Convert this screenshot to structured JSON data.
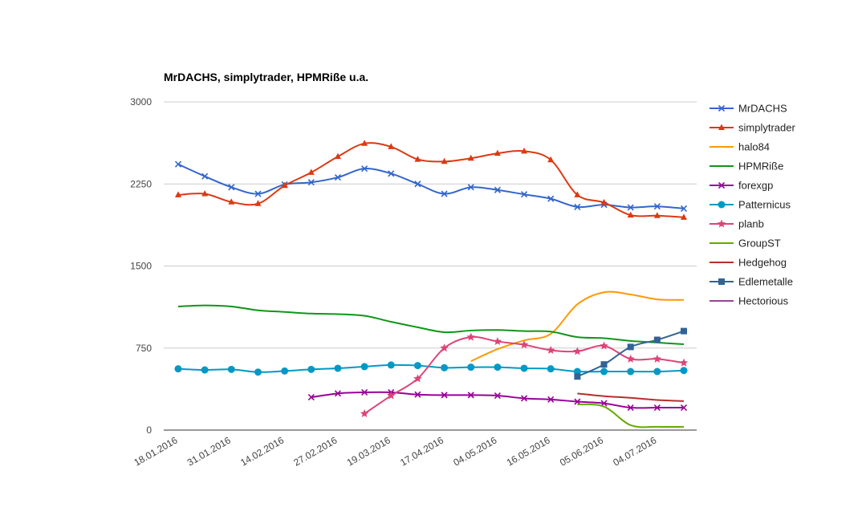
{
  "chart_data": {
    "type": "line",
    "title": "MrDACHS, simplytrader, HPMRiße u.a.",
    "xlabel": "",
    "ylabel": "",
    "ylim": [
      0,
      3000
    ],
    "yticks": [
      "0",
      "750",
      "1500",
      "2250",
      "3000"
    ],
    "ytick_values": [
      0,
      750,
      1500,
      2250,
      3000
    ],
    "x_tick_labels": [
      "18.01.2016",
      "31.01.2016",
      "14.02.2016",
      "27.02.2016",
      "19.03.2016",
      "17.04.2016",
      "04.05.2016",
      "16.05.2016",
      "05.06.2016",
      "04.07.2016"
    ],
    "x_tick_positions": [
      0,
      2,
      4,
      6,
      8,
      10,
      12,
      14,
      16,
      18
    ],
    "x_count": 20,
    "grid": true,
    "legend_position": "right",
    "series": [
      {
        "name": "MrDACHS",
        "color": "#3366cc",
        "marker": "x",
        "values": [
          2430,
          2320,
          2220,
          2160,
          2245,
          2265,
          2310,
          2390,
          2345,
          2250,
          2160,
          2220,
          2195,
          2155,
          2115,
          2040,
          2060,
          2035,
          2045,
          2025
        ]
      },
      {
        "name": "simplytrader",
        "color": "#dc3912",
        "marker": "triangle",
        "values": [
          2150,
          2160,
          2085,
          2070,
          2235,
          2355,
          2500,
          2620,
          2590,
          2475,
          2455,
          2485,
          2530,
          2550,
          2470,
          2150,
          2080,
          1965,
          1960,
          1945
        ]
      },
      {
        "name": "halo84",
        "color": "#ff9900",
        "marker": "none",
        "values": [
          null,
          null,
          null,
          null,
          null,
          null,
          null,
          null,
          null,
          null,
          null,
          630,
          740,
          820,
          880,
          1150,
          1260,
          1240,
          1195,
          1190
        ]
      },
      {
        "name": "HPMRiße",
        "color": "#109618",
        "marker": "none",
        "values": [
          1130,
          1140,
          1130,
          1095,
          1080,
          1065,
          1060,
          1045,
          990,
          940,
          895,
          910,
          915,
          905,
          900,
          850,
          840,
          815,
          800,
          785
        ]
      },
      {
        "name": "forexgp",
        "color": "#990099",
        "marker": "x",
        "values": [
          null,
          null,
          null,
          null,
          null,
          300,
          335,
          345,
          345,
          325,
          320,
          320,
          315,
          290,
          280,
          260,
          245,
          205,
          205,
          205
        ]
      },
      {
        "name": "Patternicus",
        "color": "#0099c6",
        "marker": "circle",
        "values": [
          560,
          550,
          555,
          530,
          540,
          555,
          565,
          580,
          595,
          590,
          570,
          575,
          575,
          565,
          560,
          535,
          535,
          535,
          535,
          545
        ]
      },
      {
        "name": "planb",
        "color": "#dd4477",
        "marker": "star",
        "values": [
          null,
          null,
          null,
          null,
          null,
          null,
          null,
          150,
          315,
          470,
          750,
          850,
          810,
          780,
          730,
          720,
          770,
          650,
          650,
          615
        ]
      },
      {
        "name": "GroupST",
        "color": "#66aa00",
        "marker": "none",
        "values": [
          null,
          null,
          null,
          null,
          null,
          null,
          null,
          null,
          null,
          null,
          null,
          null,
          null,
          null,
          null,
          235,
          215,
          45,
          30,
          30
        ]
      },
      {
        "name": "Hedgehog",
        "color": "#b82e2e",
        "marker": "none",
        "values": [
          null,
          null,
          null,
          null,
          null,
          null,
          null,
          null,
          null,
          null,
          null,
          null,
          null,
          null,
          null,
          335,
          310,
          295,
          275,
          265
        ]
      },
      {
        "name": "Edlemetalle",
        "color": "#316395",
        "marker": "square",
        "values": [
          null,
          null,
          null,
          null,
          null,
          null,
          null,
          null,
          null,
          null,
          null,
          null,
          null,
          null,
          null,
          490,
          600,
          760,
          825,
          905
        ]
      },
      {
        "name": "Hectorious",
        "color": "#994499",
        "marker": "none",
        "values": [
          null,
          null,
          null,
          null,
          null,
          null,
          null,
          null,
          null,
          null,
          null,
          null,
          null,
          null,
          null,
          null,
          null,
          null,
          null,
          null
        ]
      }
    ]
  }
}
